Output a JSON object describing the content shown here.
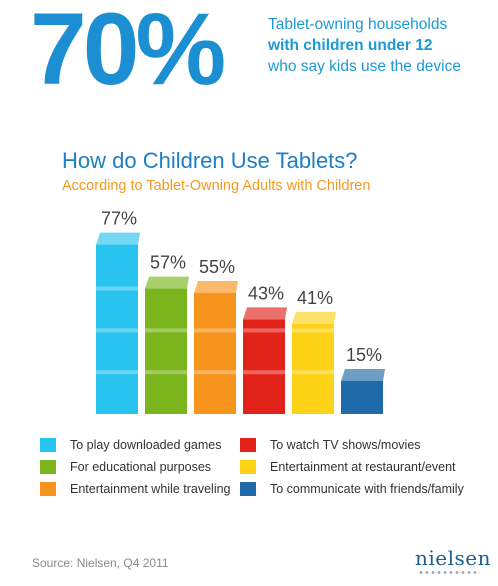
{
  "headline": {
    "stat": "70%",
    "line1": "Tablet-owning households",
    "line2": "with children under 12",
    "line3": "who say kids use the device"
  },
  "chart_data": {
    "type": "bar",
    "title": "How do Children Use Tablets?",
    "subtitle": "According to Tablet-Owning Adults with Children",
    "categories": [
      "To play downloaded games",
      "For educational purposes",
      "Entertainment while traveling",
      "To watch TV shows/movies",
      "Entertainment at restaurant/event",
      "To communicate with friends/family"
    ],
    "values": [
      77,
      57,
      55,
      43,
      41,
      15
    ],
    "value_labels": [
      "77%",
      "57%",
      "55%",
      "43%",
      "41%",
      "15%"
    ],
    "colors": [
      "#29c3ef",
      "#7ab51d",
      "#f7941d",
      "#e2231a",
      "#fcd116",
      "#1f6aa8"
    ],
    "grid": false,
    "legend_position": "bottom"
  },
  "footer": {
    "source": "Source: Nielsen, Q4 2011",
    "logo": "nielsen"
  }
}
